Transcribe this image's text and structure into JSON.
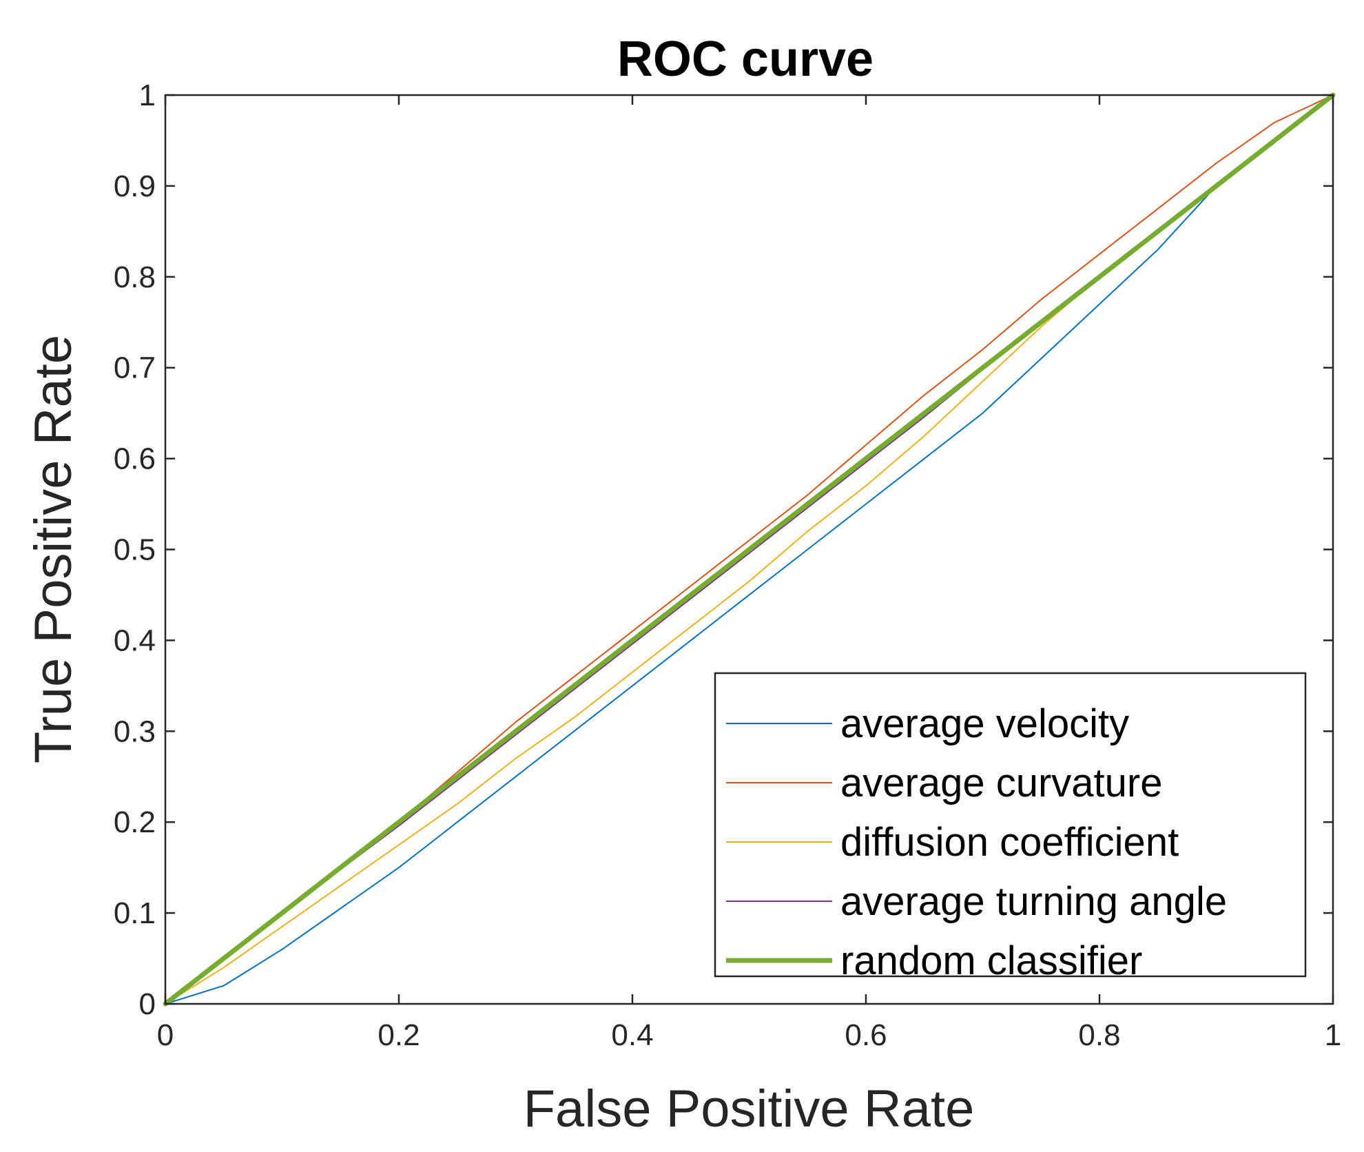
{
  "chart_data": {
    "type": "line",
    "title": "ROC curve",
    "xlabel": "False Positive Rate",
    "ylabel": "True Positive Rate",
    "xlim": [
      0,
      1
    ],
    "ylim": [
      0,
      1
    ],
    "xticks": [
      0,
      0.2,
      0.4,
      0.6,
      0.8,
      1
    ],
    "xtick_labels": [
      "0",
      "0.2",
      "0.4",
      "0.6",
      "0.8",
      "1"
    ],
    "yticks": [
      0,
      0.1,
      0.2,
      0.3,
      0.4,
      0.5,
      0.6,
      0.7,
      0.8,
      0.9,
      1
    ],
    "ytick_labels": [
      "0",
      "0.1",
      "0.2",
      "0.3",
      "0.4",
      "0.5",
      "0.6",
      "0.7",
      "0.8",
      "0.9",
      "1"
    ],
    "grid": false,
    "legend_position": "bottom-right",
    "series": [
      {
        "name": "average velocity",
        "color": "#0072BD",
        "width": "thin",
        "x": [
          0,
          0.05,
          0.1,
          0.15,
          0.2,
          0.25,
          0.3,
          0.35,
          0.4,
          0.45,
          0.5,
          0.55,
          0.6,
          0.65,
          0.7,
          0.75,
          0.8,
          0.85,
          0.9,
          0.95,
          1
        ],
        "y": [
          0,
          0.02,
          0.06,
          0.105,
          0.15,
          0.2,
          0.25,
          0.3,
          0.35,
          0.4,
          0.45,
          0.5,
          0.55,
          0.6,
          0.65,
          0.71,
          0.77,
          0.83,
          0.9,
          0.95,
          1
        ]
      },
      {
        "name": "average curvature",
        "color": "#D95319",
        "width": "thin",
        "x": [
          0,
          0.05,
          0.1,
          0.15,
          0.2,
          0.25,
          0.3,
          0.35,
          0.4,
          0.45,
          0.5,
          0.55,
          0.6,
          0.65,
          0.7,
          0.75,
          0.8,
          0.85,
          0.9,
          0.95,
          1
        ],
        "y": [
          0,
          0.05,
          0.1,
          0.15,
          0.2,
          0.255,
          0.31,
          0.36,
          0.41,
          0.46,
          0.51,
          0.56,
          0.615,
          0.67,
          0.72,
          0.775,
          0.825,
          0.875,
          0.925,
          0.97,
          1
        ]
      },
      {
        "name": "diffusion coefficient",
        "color": "#EDB120",
        "width": "thin",
        "x": [
          0,
          0.05,
          0.1,
          0.15,
          0.2,
          0.25,
          0.3,
          0.35,
          0.4,
          0.45,
          0.5,
          0.55,
          0.6,
          0.65,
          0.7,
          0.75,
          0.8,
          0.85,
          0.9,
          0.95,
          1
        ],
        "y": [
          0,
          0.04,
          0.085,
          0.13,
          0.175,
          0.22,
          0.27,
          0.315,
          0.365,
          0.415,
          0.465,
          0.52,
          0.57,
          0.625,
          0.685,
          0.745,
          0.8,
          0.85,
          0.9,
          0.95,
          1
        ]
      },
      {
        "name": "average turning angle",
        "color": "#7E2F8E",
        "width": "thin",
        "x": [
          0,
          0.05,
          0.1,
          0.15,
          0.2,
          0.25,
          0.3,
          0.35,
          0.4,
          0.45,
          0.5,
          0.55,
          0.6,
          0.65,
          0.7,
          0.75,
          0.8,
          0.85,
          0.9,
          0.95,
          1
        ],
        "y": [
          0,
          0.048,
          0.098,
          0.148,
          0.196,
          0.246,
          0.296,
          0.346,
          0.396,
          0.446,
          0.496,
          0.546,
          0.596,
          0.646,
          0.698,
          0.75,
          0.8,
          0.85,
          0.9,
          0.95,
          1
        ]
      },
      {
        "name": "random classifier",
        "color": "#77AC30",
        "width": "thick",
        "x": [
          0,
          1
        ],
        "y": [
          0,
          1
        ]
      }
    ]
  }
}
